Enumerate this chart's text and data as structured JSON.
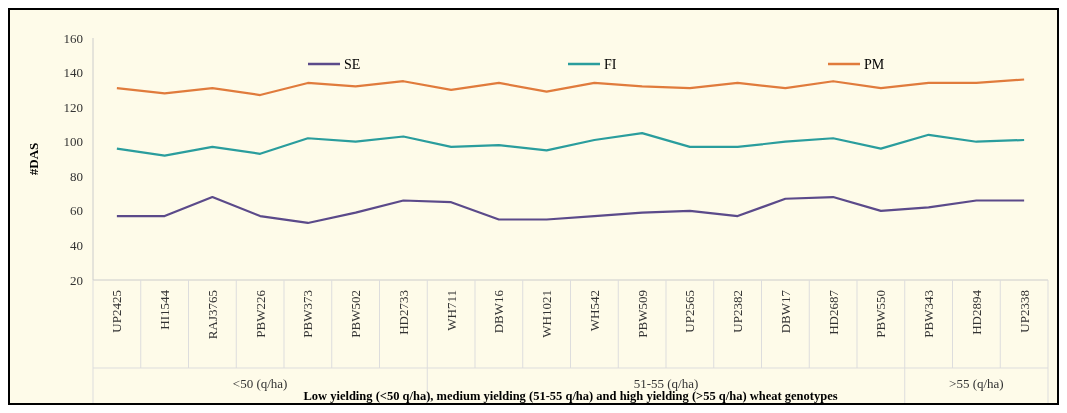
{
  "chart_data": {
    "type": "line",
    "xlabel": "Low yielding  (<50 q/ha), medium yielding  (51-55 q/ha)  and high yielding  (>55 q/ha) wheat genotypes",
    "ylabel": "#DAS",
    "categories": [
      "UP2425",
      "HI1544",
      "RAJ3765",
      "PBW226",
      "PBW373",
      "PBW502",
      "HD2733",
      "WH711",
      "DBW16",
      "WH1021",
      "WH542",
      "PBW509",
      "UP2565",
      "UP2382",
      "DBW17",
      "HD2687",
      "PBW550",
      "PBW343",
      "HD2894",
      "UP2338"
    ],
    "series": [
      {
        "name": "SE",
        "color": "#5b4a8a",
        "values": [
          57,
          57,
          68,
          57,
          53,
          59,
          66,
          65,
          55,
          55,
          57,
          59,
          60,
          57,
          67,
          68,
          60,
          62,
          66,
          66
        ]
      },
      {
        "name": "FI",
        "color": "#2a9d9d",
        "values": [
          96,
          92,
          97,
          93,
          102,
          100,
          103,
          97,
          98,
          95,
          101,
          105,
          97,
          97,
          100,
          102,
          96,
          104,
          100,
          101
        ]
      },
      {
        "name": "PM",
        "color": "#e07b3c",
        "values": [
          131,
          128,
          131,
          127,
          134,
          132,
          135,
          130,
          134,
          129,
          134,
          132,
          131,
          134,
          131,
          135,
          131,
          134,
          134,
          136
        ]
      }
    ],
    "ylim": [
      20,
      160
    ],
    "yticks": [
      20,
      40,
      60,
      80,
      100,
      120,
      140,
      160
    ],
    "legend": "top",
    "grid": false,
    "marker": "none",
    "line_style": "solid",
    "annotations": [
      "<50 (q/ha)",
      "51-55 (q/ha)",
      ">55 (q/ha)"
    ]
  }
}
